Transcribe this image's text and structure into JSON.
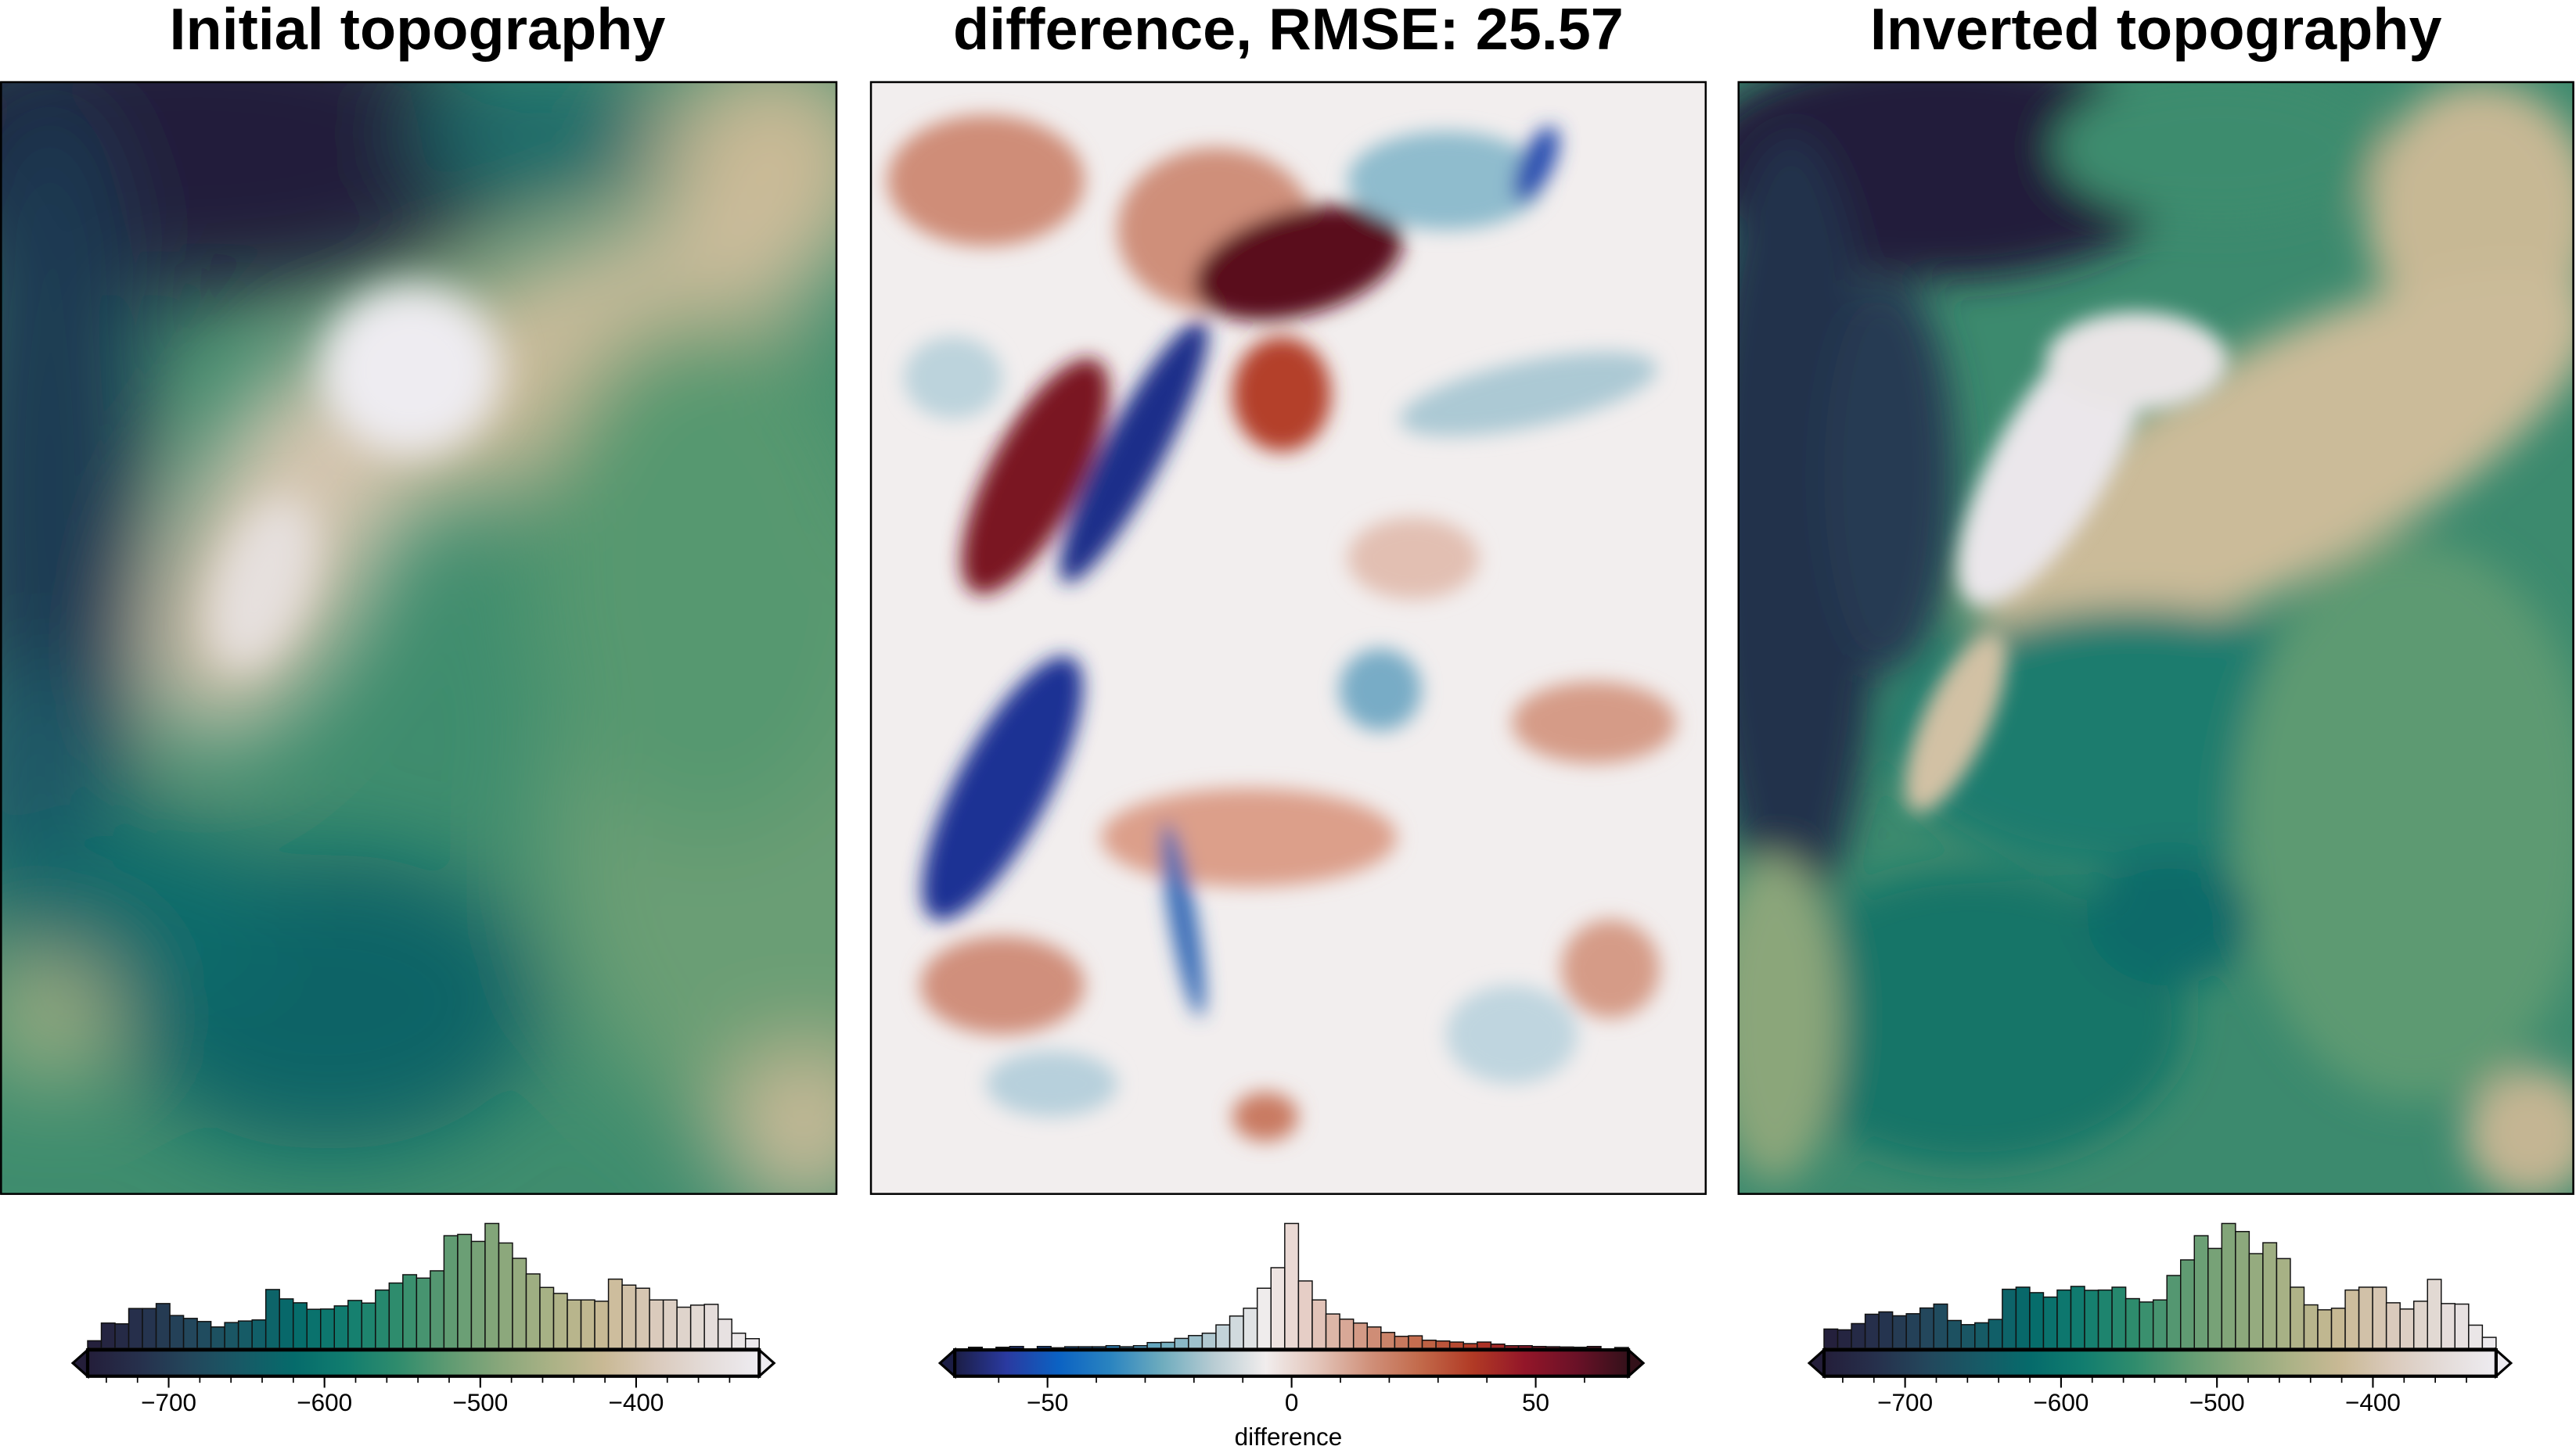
{
  "panels": [
    {
      "title": "Initial topography"
    },
    {
      "title": "difference, RMSE: 25.57"
    },
    {
      "title": "Inverted topography"
    }
  ],
  "chart_data": [
    {
      "type": "heatmap",
      "title": "Initial topography",
      "colorbar": {
        "range": [
          -752,
          -321
        ],
        "major_ticks": [
          -700,
          -600,
          -500,
          -400
        ],
        "tick_labels": [
          "−700",
          "−600",
          "−500",
          "−400"
        ],
        "minor_step": 20,
        "label": "",
        "extend": "both",
        "histogram_relative_counts": [
          29,
          97,
          94,
          153,
          153,
          172,
          126,
          115,
          103,
          82,
          99,
          105,
          109,
          226,
          190,
          175,
          150,
          151,
          163,
          184,
          174,
          224,
          251,
          283,
          270,
          298,
          433,
          438,
          411,
          480,
          405,
          346,
          286,
          234,
          211,
          186,
          186,
          181,
          266,
          243,
          231,
          186,
          186,
          158,
          166,
          169,
          112,
          58,
          37
        ]
      },
      "colormap": [
        "#241e3a",
        "#26304c",
        "#23475c",
        "#175a66",
        "#056b6b",
        "#117d6f",
        "#2f8c6d",
        "#5f9b72",
        "#89a77b",
        "#abb286",
        "#c9b995",
        "#dacabc",
        "#e4dcd9",
        "#eeecf1"
      ]
    },
    {
      "type": "heatmap",
      "title": "difference, RMSE: 25.57",
      "colorbar": {
        "range": [
          -69,
          69
        ],
        "major_ticks": [
          -50,
          0,
          50
        ],
        "tick_labels": [
          "−50",
          "0",
          "50"
        ],
        "minor_step": 10,
        "label": "difference",
        "extend": "both",
        "histogram_relative_counts": [
          0,
          4,
          0,
          4,
          7,
          0,
          7,
          2,
          6,
          6,
          6,
          10,
          6,
          10,
          22,
          23,
          38,
          49,
          58,
          90,
          124,
          154,
          231,
          310,
          480,
          259,
          186,
          132,
          112,
          97,
          82,
          61,
          46,
          48,
          31,
          28,
          24,
          18,
          24,
          16,
          10,
          10,
          7,
          6,
          5,
          4,
          7,
          0,
          3
        ]
      },
      "colormap": [
        "#1b1d45",
        "#2a3aa0",
        "#0b62c3",
        "#2a84c0",
        "#6eacbe",
        "#b8ccd3",
        "#f1eded",
        "#e3c5ba",
        "#d0917b",
        "#c2694a",
        "#b13a25",
        "#931629",
        "#6a1127",
        "#33111a"
      ]
    },
    {
      "type": "heatmap",
      "title": "Inverted topography",
      "colorbar": {
        "range": [
          -752,
          -321
        ],
        "major_ticks": [
          -700,
          -600,
          -500,
          -400
        ],
        "tick_labels": [
          "−700",
          "−600",
          "−500",
          "−400"
        ],
        "minor_step": 20,
        "label": "",
        "extend": "both",
        "histogram_relative_counts": [
          74,
          71,
          95,
          131,
          140,
          125,
          133,
          155,
          170,
          107,
          91,
          98,
          111,
          227,
          235,
          214,
          197,
          224,
          238,
          223,
          224,
          235,
          191,
          178,
          186,
          280,
          340,
          433,
          384,
          480,
          449,
          364,
          406,
          345,
          235,
          167,
          148,
          154,
          224,
          235,
          235,
          175,
          151,
          181,
          265,
          172,
          170,
          89,
          42
        ]
      },
      "colormap": [
        "#241e3a",
        "#26304c",
        "#23475c",
        "#175a66",
        "#056b6b",
        "#117d6f",
        "#2f8c6d",
        "#5f9b72",
        "#89a77b",
        "#abb286",
        "#c9b995",
        "#dacabc",
        "#e4dcd9",
        "#eeecf1"
      ]
    }
  ]
}
